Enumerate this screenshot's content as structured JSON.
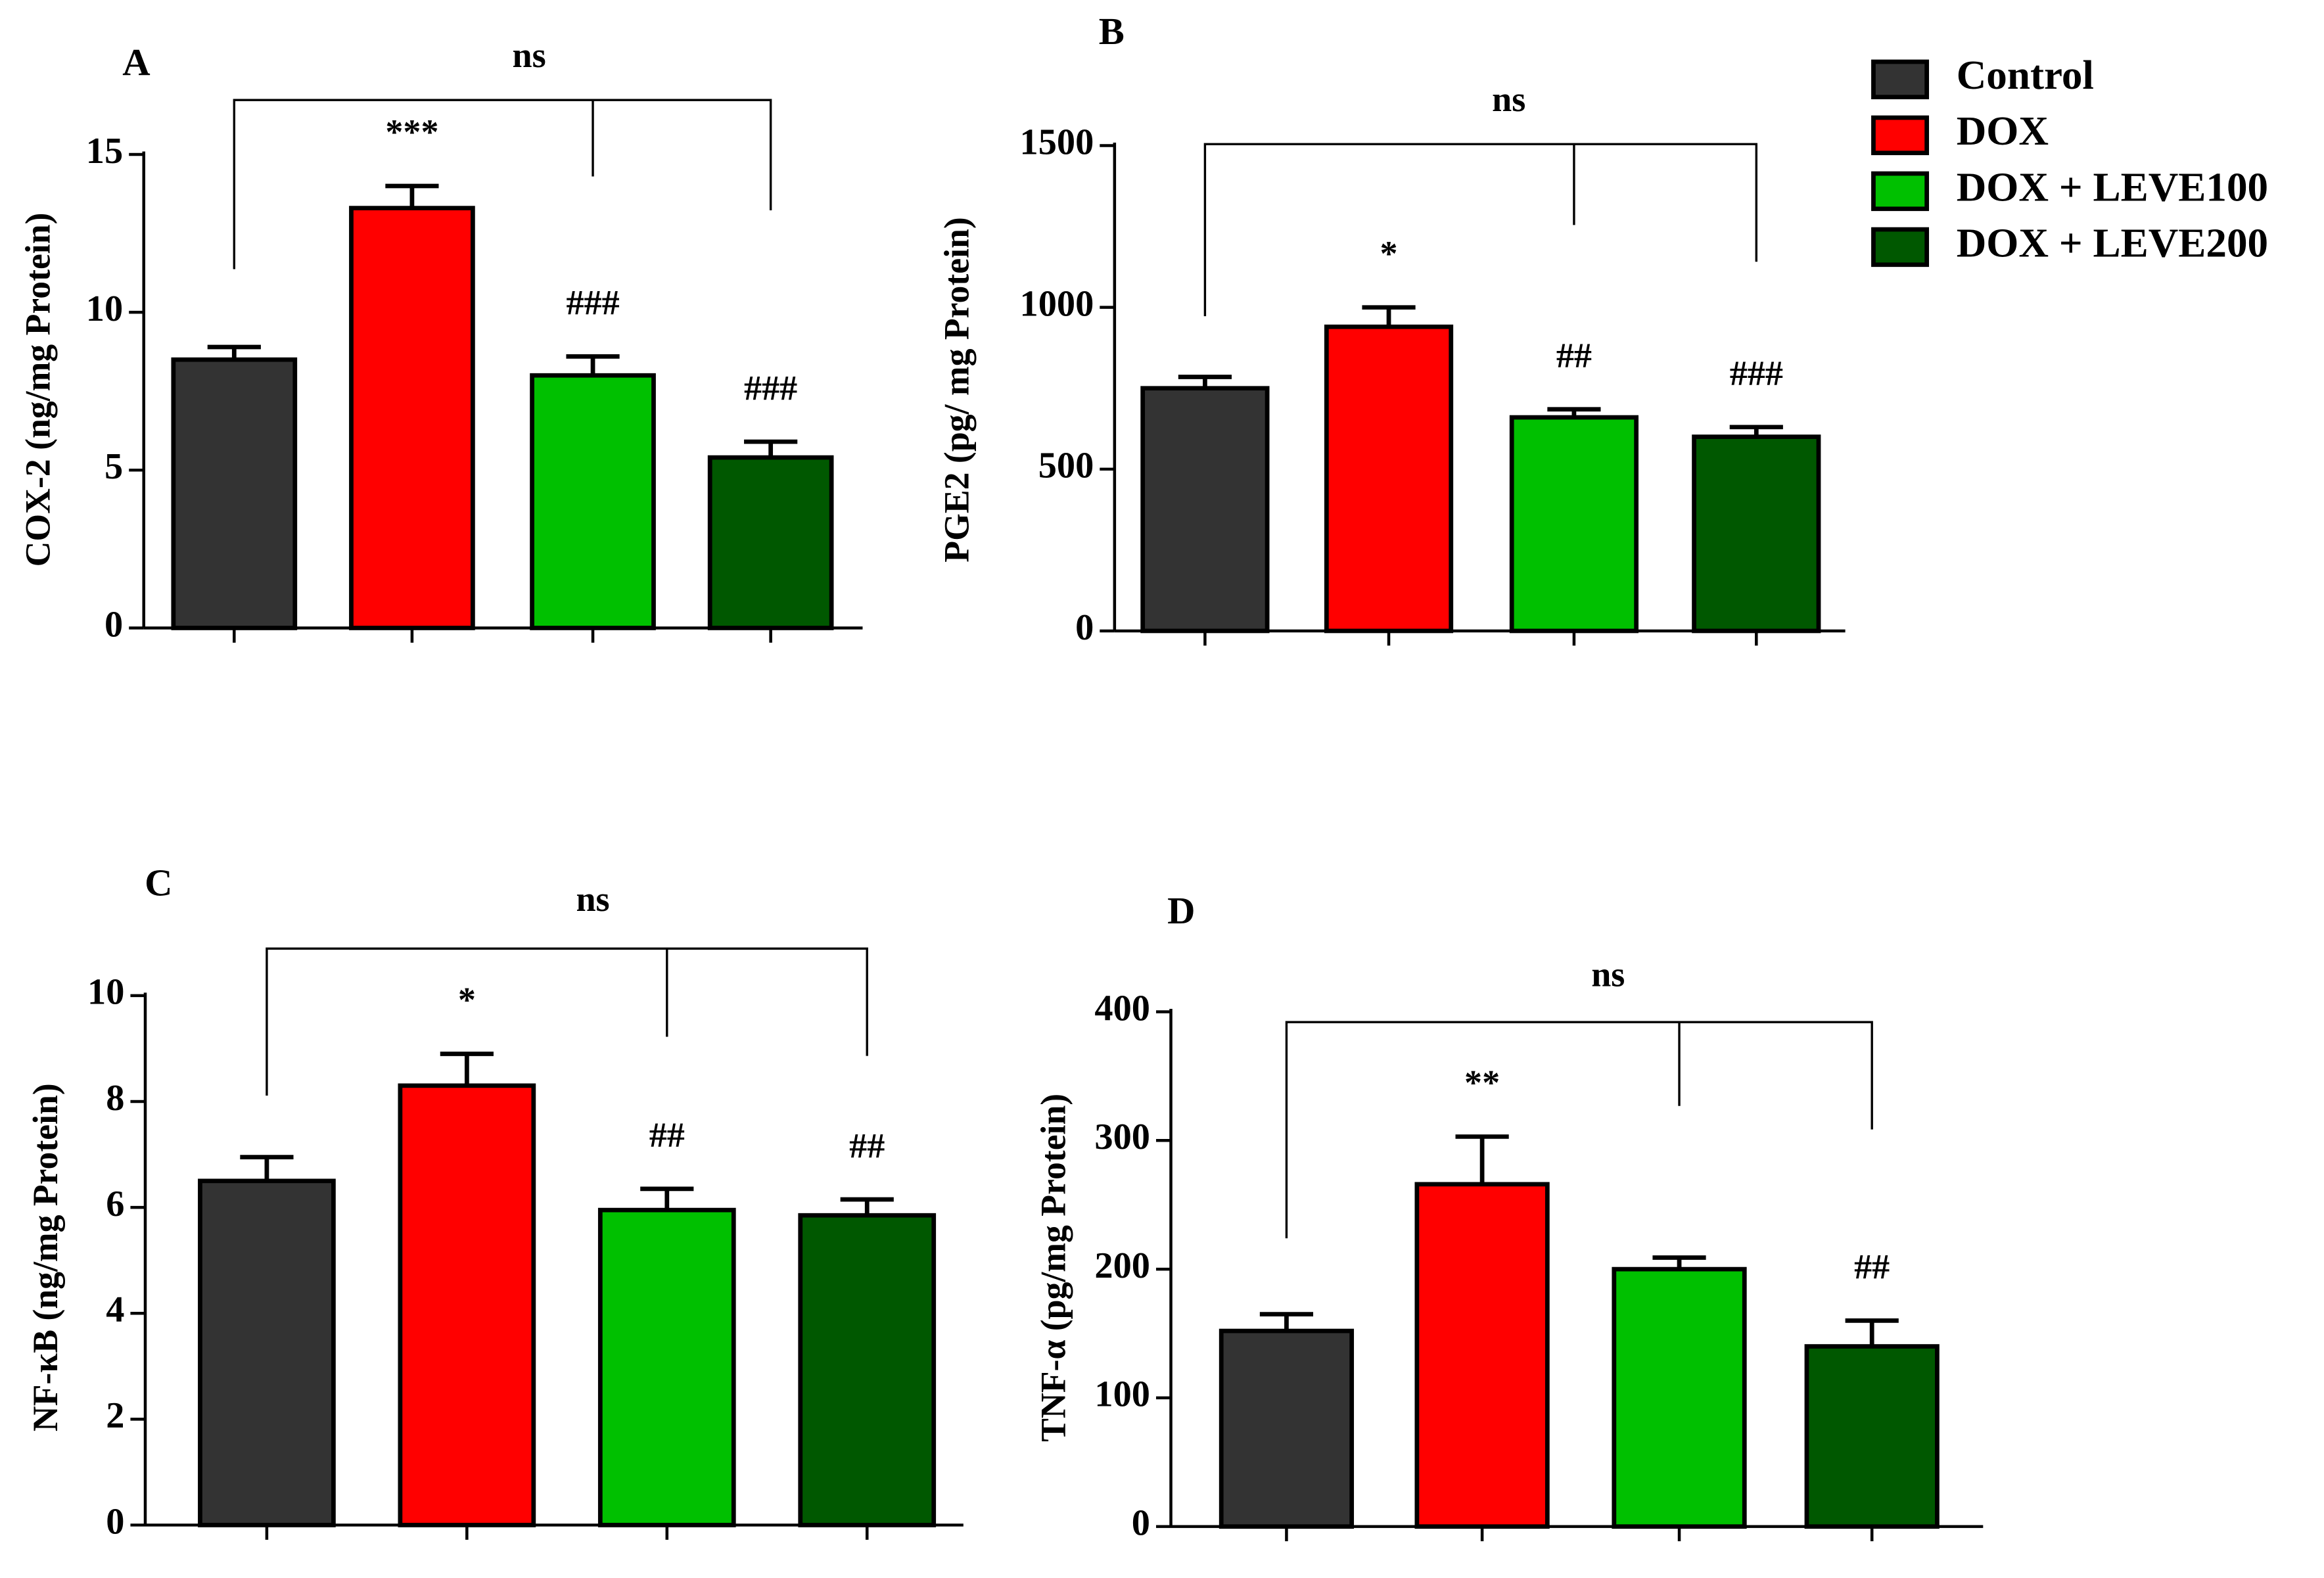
{
  "legend": {
    "entries": [
      {
        "name": "Control",
        "color": "#333333"
      },
      {
        "name": "DOX",
        "color": "#ff0000"
      },
      {
        "name": "DOX + LEVE100",
        "color": "#00c000"
      },
      {
        "name": "DOX + LEVE200",
        "color": "#005800"
      }
    ]
  },
  "chart_data": [
    {
      "type": "bar",
      "panel_label": "A",
      "ylabel": "COX-2 (ng/mg Protein)",
      "values": [
        8.5,
        13.3,
        8.0,
        5.4
      ],
      "errors": [
        0.4,
        0.7,
        0.6,
        0.5
      ],
      "annotations": [
        null,
        "***",
        "###",
        "###"
      ],
      "bracket_label": "ns",
      "ylim": [
        0,
        15
      ],
      "yticks": [
        0,
        5,
        10,
        15
      ]
    },
    {
      "type": "bar",
      "panel_label": "B",
      "ylabel": "PGE2 (pg/ mg Protein)",
      "values": [
        750,
        940,
        660,
        600
      ],
      "errors": [
        35,
        60,
        25,
        30
      ],
      "annotations": [
        null,
        "*",
        "##",
        "###"
      ],
      "bracket_label": "ns",
      "ylim": [
        0,
        1500
      ],
      "yticks": [
        0,
        500,
        1000,
        1500
      ]
    },
    {
      "type": "bar",
      "panel_label": "C",
      "ylabel": "NF-κB (ng/mg Protein)",
      "values": [
        6.5,
        8.3,
        5.95,
        5.85
      ],
      "errors": [
        0.45,
        0.6,
        0.4,
        0.3
      ],
      "annotations": [
        null,
        "*",
        "##",
        "##"
      ],
      "bracket_label": "ns",
      "ylim": [
        0,
        10
      ],
      "yticks": [
        0,
        2,
        4,
        6,
        8,
        10
      ]
    },
    {
      "type": "bar",
      "panel_label": "D",
      "ylabel": "TNF-α (pg/mg Protein)",
      "values": [
        152,
        266,
        200,
        140
      ],
      "errors": [
        13,
        37,
        9,
        20
      ],
      "annotations": [
        null,
        "**",
        null,
        "##"
      ],
      "bracket_label": "ns",
      "ylim": [
        0,
        400
      ],
      "yticks": [
        0,
        100,
        200,
        300,
        400
      ]
    }
  ]
}
